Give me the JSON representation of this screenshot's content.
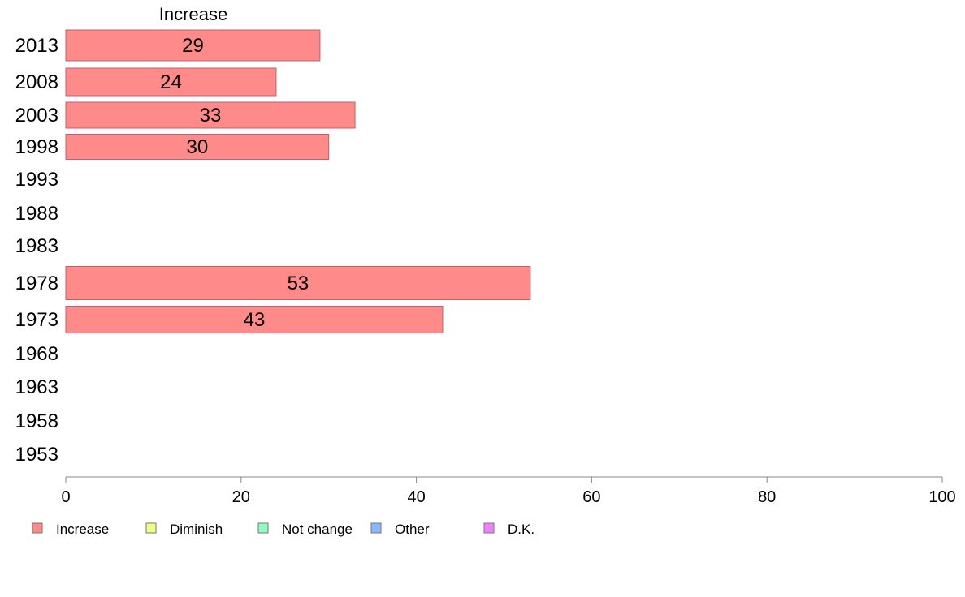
{
  "chart_data": {
    "type": "bar",
    "orientation": "horizontal",
    "title": "Increase",
    "categories": [
      "2013",
      "2008",
      "2003",
      "1998",
      "1993",
      "1988",
      "1983",
      "1978",
      "1973",
      "1968",
      "1963",
      "1958",
      "1953"
    ],
    "series": [
      {
        "name": "Increase",
        "values": [
          29,
          24,
          33,
          30,
          null,
          null,
          null,
          53,
          43,
          null,
          null,
          null,
          null
        ],
        "color": "#ff8a8a"
      }
    ],
    "xlim": [
      0,
      100
    ],
    "xticks": [
      "0",
      "20",
      "40",
      "60",
      "80",
      "100"
    ],
    "grid": false,
    "legend_position": "bottom-left",
    "legend": [
      {
        "label": "Increase",
        "color": "#ff8a8a"
      },
      {
        "label": "Diminish",
        "color": "#f0ff80"
      },
      {
        "label": "Not change",
        "color": "#8affc0"
      },
      {
        "label": "Other",
        "color": "#8ab8ff"
      },
      {
        "label": "D.K.",
        "color": "#f080ff"
      }
    ]
  }
}
